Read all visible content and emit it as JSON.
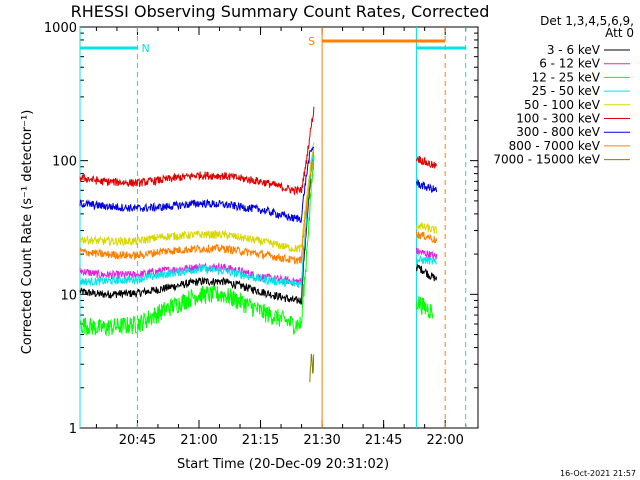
{
  "chart_data": {
    "type": "line",
    "title": "RHESSI Observing Summary Count Rates, Corrected",
    "xlabel": "Start Time (20-Dec-09 20:31:02)",
    "ylabel": "Corrected Count Rate (s⁻¹ detector⁻¹)",
    "y_scale": "log",
    "ylim": [
      1,
      1000
    ],
    "xlim_minutes_from_start": [
      0,
      97
    ],
    "x_ticks": [
      {
        "label": "20:45",
        "minute": 14
      },
      {
        "label": "21:00",
        "minute": 29
      },
      {
        "label": "21:15",
        "minute": 44
      },
      {
        "label": "21:30",
        "minute": 59
      },
      {
        "label": "21:45",
        "minute": 74
      },
      {
        "label": "22:00",
        "minute": 89
      }
    ],
    "y_ticks": [
      {
        "label": "1",
        "value": 1
      },
      {
        "label": "10",
        "value": 10
      },
      {
        "label": "100",
        "value": 100
      },
      {
        "label": "1000",
        "value": 1000
      }
    ],
    "legend_header": [
      "Det 1,3,4,5,6,9,",
      "Att 0"
    ],
    "legend_position": "right",
    "series": [
      {
        "name": "3 - 6 keV",
        "color": "#000000",
        "points": [
          [
            0,
            10.5
          ],
          [
            5,
            10
          ],
          [
            14,
            10.2
          ],
          [
            20,
            11
          ],
          [
            29,
            12.5
          ],
          [
            35,
            12.5
          ],
          [
            44,
            10.5
          ],
          [
            52,
            9
          ],
          [
            54,
            9
          ],
          [
            55,
            25
          ],
          [
            56,
            60
          ],
          [
            57,
            120
          ]
        ],
        "points2": [
          [
            82,
            16
          ],
          [
            84,
            15
          ],
          [
            85,
            14
          ],
          [
            87,
            13
          ]
        ]
      },
      {
        "name": "6 - 12 keV",
        "color": "#e020e0",
        "points": [
          [
            0,
            15
          ],
          [
            5,
            14
          ],
          [
            14,
            14
          ],
          [
            20,
            15
          ],
          [
            29,
            16
          ],
          [
            35,
            16
          ],
          [
            44,
            13.5
          ],
          [
            52,
            12.5
          ],
          [
            54,
            12.5
          ],
          [
            55,
            30
          ],
          [
            56,
            70
          ],
          [
            57,
            130
          ]
        ],
        "points2": [
          [
            82,
            21
          ],
          [
            85,
            20
          ],
          [
            87,
            19
          ]
        ]
      },
      {
        "name": "12 - 25 keV",
        "color": "#00ff00",
        "points": [
          [
            0,
            6
          ],
          [
            5,
            5.6
          ],
          [
            14,
            6
          ],
          [
            20,
            7.5
          ],
          [
            29,
            10
          ],
          [
            35,
            10
          ],
          [
            44,
            7.5
          ],
          [
            52,
            6
          ],
          [
            54,
            6
          ],
          [
            55,
            15
          ],
          [
            56,
            40
          ],
          [
            57,
            100
          ]
        ],
        "points2": [
          [
            82,
            9
          ],
          [
            84,
            8
          ],
          [
            86,
            7.5
          ]
        ]
      },
      {
        "name": "25 - 50 keV",
        "color": "#00e5e5",
        "points": [
          [
            0,
            12.5
          ],
          [
            5,
            12.5
          ],
          [
            14,
            13
          ],
          [
            20,
            14
          ],
          [
            29,
            15.5
          ],
          [
            35,
            15
          ],
          [
            44,
            13
          ],
          [
            52,
            12
          ],
          [
            54,
            12
          ],
          [
            55,
            30
          ],
          [
            56,
            70
          ],
          [
            57,
            120
          ]
        ],
        "points2": [
          [
            82,
            18
          ],
          [
            85,
            18
          ],
          [
            87,
            17
          ]
        ]
      },
      {
        "name": "50 - 100 keV",
        "color": "#d8d800",
        "points": [
          [
            0,
            26
          ],
          [
            5,
            25
          ],
          [
            14,
            25
          ],
          [
            20,
            27
          ],
          [
            29,
            28
          ],
          [
            35,
            28
          ],
          [
            44,
            25
          ],
          [
            52,
            22
          ],
          [
            54,
            22
          ],
          [
            55,
            45
          ],
          [
            56,
            80
          ],
          [
            57,
            130
          ]
        ],
        "points2": [
          [
            82,
            33
          ],
          [
            85,
            31
          ],
          [
            87,
            30
          ]
        ]
      },
      {
        "name": "100 - 300 keV",
        "color": "#e00000",
        "points": [
          [
            0,
            75
          ],
          [
            5,
            70
          ],
          [
            14,
            68
          ],
          [
            20,
            72
          ],
          [
            29,
            78
          ],
          [
            35,
            77
          ],
          [
            44,
            70
          ],
          [
            52,
            60
          ],
          [
            54,
            60
          ],
          [
            55,
            90
          ],
          [
            56,
            150
          ],
          [
            57,
            240
          ]
        ],
        "points2": [
          [
            82,
            105
          ],
          [
            85,
            95
          ],
          [
            87,
            90
          ]
        ]
      },
      {
        "name": "300 - 800 keV",
        "color": "#0000e0",
        "points": [
          [
            0,
            48
          ],
          [
            5,
            46
          ],
          [
            14,
            44
          ],
          [
            20,
            45
          ],
          [
            29,
            48
          ],
          [
            35,
            47
          ],
          [
            44,
            43
          ],
          [
            52,
            37
          ],
          [
            54,
            37
          ],
          [
            55,
            70
          ],
          [
            56,
            110
          ],
          [
            57,
            130
          ]
        ],
        "points2": [
          [
            82,
            68
          ],
          [
            84,
            64
          ],
          [
            87,
            60
          ]
        ]
      },
      {
        "name": "800 - 7000 keV",
        "color": "#ff7f00",
        "points": [
          [
            0,
            21
          ],
          [
            5,
            20
          ],
          [
            14,
            19.5
          ],
          [
            20,
            21
          ],
          [
            29,
            22
          ],
          [
            35,
            22
          ],
          [
            44,
            20
          ],
          [
            52,
            18
          ],
          [
            54,
            18
          ],
          [
            55,
            40
          ],
          [
            56,
            70
          ],
          [
            57,
            110
          ]
        ],
        "points2": [
          [
            82,
            28
          ],
          [
            85,
            27
          ],
          [
            87,
            25
          ]
        ]
      },
      {
        "name": "7000 - 15000 keV",
        "color": "#808000",
        "points": [
          [
            56,
            2.2
          ],
          [
            56.4,
            3.5
          ],
          [
            56.8,
            2.5
          ],
          [
            57,
            3.8
          ]
        ],
        "points2": []
      }
    ],
    "annotations": {
      "night_intervals": [
        [
          0,
          14
        ],
        [
          82,
          94
        ]
      ],
      "night_label": "N",
      "saa_interval": [
        59,
        89
      ],
      "saa_label": "S",
      "vlines": [
        {
          "minute": 0,
          "color": "#00e5e5",
          "style": "solid"
        },
        {
          "minute": 14,
          "color": "#00e5e5",
          "style": "dashed"
        },
        {
          "minute": 59,
          "color": "#ff7f00",
          "style": "solid"
        },
        {
          "minute": 82,
          "color": "#00e5e5",
          "style": "solid"
        },
        {
          "minute": 89,
          "color": "#ff7f00",
          "style": "dashed"
        },
        {
          "minute": 94,
          "color": "#00e5e5",
          "style": "dashed"
        }
      ]
    },
    "timestamp": "16-Oct-2021 21:57"
  }
}
